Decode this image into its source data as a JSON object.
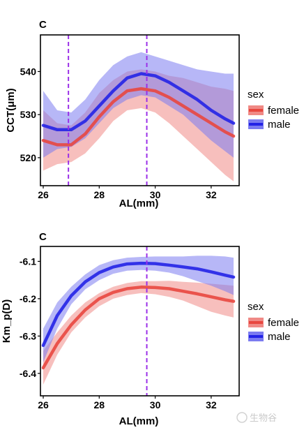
{
  "legend_title": "sex",
  "watermark": "生物谷",
  "colors": {
    "female_line": "#e8473f",
    "female_band": "#f08a86",
    "male_line": "#2323e6",
    "male_band": "#7b7bf0",
    "vline": "#9b30e8"
  },
  "chart_data": [
    {
      "panel": "C",
      "type": "line",
      "xlabel": "AL(mm)",
      "ylabel": "CCT(μm)",
      "xlim": [
        25.9,
        33.0
      ],
      "ylim": [
        513.5,
        548.5
      ],
      "xticks": [
        26,
        28,
        30,
        32
      ],
      "yticks": [
        520,
        530,
        540
      ],
      "vlines": [
        26.9,
        29.7
      ],
      "legend_position": "right",
      "series": [
        {
          "name": "female",
          "color_key": "female",
          "x": [
            26.0,
            26.5,
            27.0,
            27.5,
            28.0,
            28.5,
            29.0,
            29.5,
            30.0,
            30.5,
            31.0,
            31.5,
            32.0,
            32.5,
            32.8
          ],
          "y": [
            524.0,
            523.0,
            523.0,
            525.5,
            529.5,
            533.0,
            535.5,
            536.0,
            535.5,
            534.0,
            532.0,
            530.0,
            528.0,
            526.0,
            525.0
          ],
          "lower": [
            517.0,
            518.5,
            519.0,
            521.0,
            524.5,
            528.5,
            531.0,
            531.5,
            530.5,
            528.0,
            525.0,
            522.0,
            519.0,
            516.0,
            514.5
          ],
          "upper": [
            531.0,
            528.0,
            527.5,
            530.5,
            535.0,
            538.0,
            540.0,
            540.5,
            540.0,
            539.0,
            538.5,
            537.5,
            536.5,
            536.0,
            535.5
          ]
        },
        {
          "name": "male",
          "color_key": "male",
          "x": [
            26.0,
            26.5,
            27.0,
            27.5,
            28.0,
            28.5,
            29.0,
            29.5,
            30.0,
            30.5,
            31.0,
            31.5,
            32.0,
            32.5,
            32.8
          ],
          "y": [
            527.5,
            526.5,
            526.5,
            528.5,
            532.0,
            535.5,
            538.5,
            539.5,
            539.0,
            537.5,
            535.5,
            533.5,
            531.0,
            529.0,
            528.0
          ],
          "lower": [
            520.0,
            522.0,
            522.5,
            524.5,
            528.0,
            531.5,
            533.5,
            534.5,
            534.0,
            532.0,
            530.0,
            527.0,
            524.0,
            521.5,
            520.0
          ],
          "upper": [
            535.5,
            531.0,
            530.5,
            533.5,
            538.0,
            541.5,
            543.5,
            544.5,
            543.5,
            542.5,
            541.5,
            540.5,
            540.0,
            539.5,
            539.5
          ]
        }
      ]
    },
    {
      "panel": "C",
      "type": "line",
      "xlabel": "AL(mm)",
      "ylabel": "Km_p(D)",
      "xlim": [
        25.9,
        33.0
      ],
      "ylim": [
        -6.46,
        -6.06
      ],
      "xticks": [
        26,
        28,
        30,
        32
      ],
      "yticks": [
        -6.1,
        -6.2,
        -6.3,
        -6.4
      ],
      "ytick_labels": [
        "-6.1",
        "-6.2",
        "-6.3",
        "-6.4"
      ],
      "vlines": [
        29.7
      ],
      "legend_position": "right",
      "series": [
        {
          "name": "female",
          "color_key": "female",
          "x": [
            26.0,
            26.5,
            27.0,
            27.5,
            28.0,
            28.5,
            29.0,
            29.5,
            30.0,
            30.5,
            31.0,
            31.5,
            32.0,
            32.5,
            32.8
          ],
          "y": [
            -6.385,
            -6.32,
            -6.27,
            -6.23,
            -6.2,
            -6.183,
            -6.173,
            -6.169,
            -6.17,
            -6.173,
            -6.18,
            -6.187,
            -6.195,
            -6.203,
            -6.207
          ],
          "lower": [
            -6.43,
            -6.35,
            -6.29,
            -6.25,
            -6.22,
            -6.2,
            -6.19,
            -6.185,
            -6.188,
            -6.195,
            -6.205,
            -6.22,
            -6.235,
            -6.245,
            -6.25
          ],
          "upper": [
            -6.34,
            -6.29,
            -6.245,
            -6.21,
            -6.185,
            -6.168,
            -6.158,
            -6.153,
            -6.153,
            -6.152,
            -6.155,
            -6.157,
            -6.16,
            -6.163,
            -6.165
          ]
        },
        {
          "name": "male",
          "color_key": "male",
          "x": [
            26.0,
            26.5,
            27.0,
            27.5,
            28.0,
            28.5,
            29.0,
            29.5,
            30.0,
            30.5,
            31.0,
            31.5,
            32.0,
            32.5,
            32.8
          ],
          "y": [
            -6.325,
            -6.245,
            -6.192,
            -6.155,
            -6.13,
            -6.115,
            -6.107,
            -6.105,
            -6.106,
            -6.11,
            -6.115,
            -6.12,
            -6.128,
            -6.137,
            -6.142
          ],
          "lower": [
            -6.37,
            -6.28,
            -6.215,
            -6.175,
            -6.15,
            -6.133,
            -6.125,
            -6.123,
            -6.125,
            -6.13,
            -6.14,
            -6.153,
            -6.165,
            -6.18,
            -6.19
          ],
          "upper": [
            -6.28,
            -6.21,
            -6.168,
            -6.135,
            -6.11,
            -6.097,
            -6.09,
            -6.088,
            -6.087,
            -6.087,
            -6.087,
            -6.085,
            -6.085,
            -6.087,
            -6.09
          ]
        }
      ]
    }
  ]
}
